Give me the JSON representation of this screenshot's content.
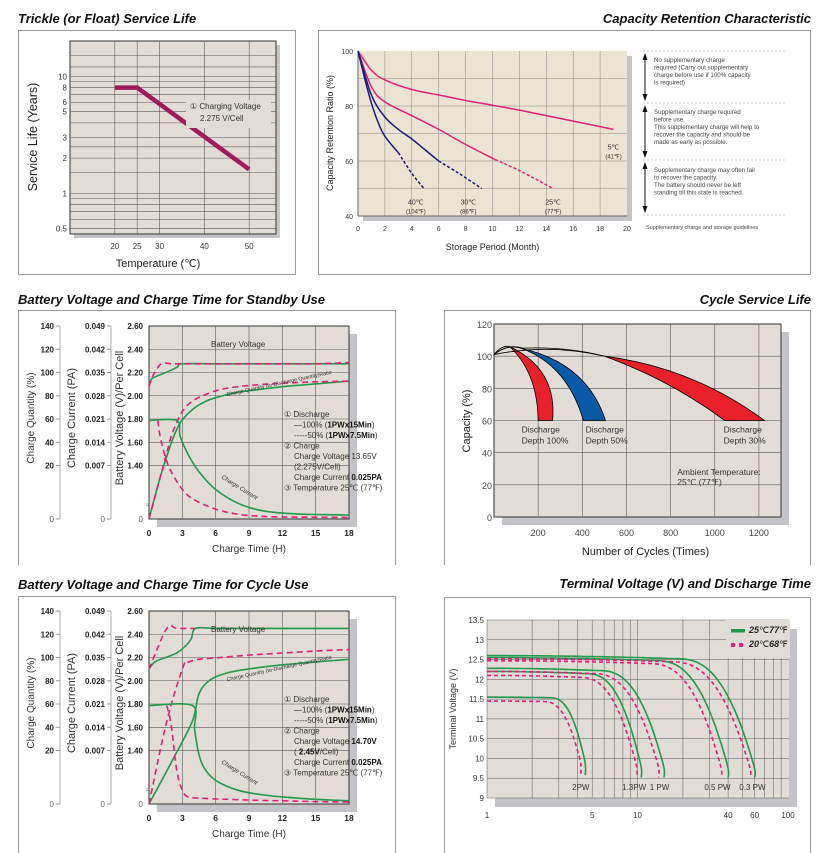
{
  "page": {
    "colors": {
      "plot_bg": "#e1ddd6",
      "plot_bg_warm": "#ece4d2",
      "shadow": "#c4c4c8",
      "grid": "#5a5a5a",
      "magenta": "#a01a5e",
      "pink": "#e0207a",
      "navy": "#1a1a80",
      "green": "#23994a",
      "red": "#e8202a",
      "blue": "#0b5aa8"
    }
  },
  "chart_data": [
    {
      "id": "trickle",
      "type": "line",
      "title": "Trickle (or Float) Service Life",
      "xlabel": "Temperature (℃)",
      "ylabel": "Service Life (Years)",
      "xlim": [
        10,
        60
      ],
      "ylim": [
        0.45,
        20
      ],
      "yscale": "log",
      "xticks": [
        20,
        25,
        30,
        40,
        50
      ],
      "xtick_labels": [
        "20",
        "25",
        "30",
        "40",
        "50"
      ],
      "yticks": [
        0.5,
        1,
        2,
        3,
        5,
        6,
        8,
        10
      ],
      "ytick_labels": [
        "0.5",
        "1",
        "2",
        "3",
        "5",
        "6",
        "8",
        "10"
      ],
      "series": [
        {
          "name": "Charging Voltage 2.275 V/Cell",
          "x": [
            20,
            25,
            50
          ],
          "y": [
            8,
            8,
            1.6
          ]
        }
      ],
      "annotation": [
        "① Charging Voltage",
        "2.275 V/Cell"
      ],
      "grid": true
    },
    {
      "id": "capacity",
      "type": "line",
      "title": "Capacity  Retention  Characteristic",
      "xlabel": "Storage Period (Month)",
      "ylabel": "Capacity Retention Ratio (%)",
      "xlim": [
        0,
        20
      ],
      "ylim": [
        40,
        100
      ],
      "xticks": [
        0,
        2,
        4,
        6,
        8,
        10,
        12,
        14,
        16,
        18,
        20
      ],
      "yticks": [
        40,
        60,
        80,
        100
      ],
      "series": [
        {
          "name": "5℃",
          "sub": "(41℉)",
          "color": "pink",
          "x": [
            0,
            1,
            2,
            4,
            6,
            8,
            10,
            12,
            14,
            16,
            18,
            19
          ],
          "y": [
            100,
            93,
            89.5,
            86,
            84,
            82,
            80.3,
            78.5,
            76.5,
            74.5,
            72.5,
            71.5
          ],
          "dash_from": null,
          "label_at": [
            19,
            65
          ]
        },
        {
          "name": "25℃",
          "sub": "(77℉)",
          "color": "pink",
          "x": [
            0,
            1,
            2,
            4,
            6,
            8,
            10.2,
            12,
            14.5
          ],
          "y": [
            100,
            87,
            81.5,
            76.5,
            71.5,
            66,
            60.5,
            56.5,
            50
          ],
          "dash_from": 10.2,
          "label_at": [
            14.5,
            45
          ]
        },
        {
          "name": "30℃",
          "sub": "(86℉)",
          "color": "navy",
          "x": [
            0,
            1,
            2,
            3,
            4,
            5,
            6,
            7.5,
            9.2
          ],
          "y": [
            100,
            84,
            76,
            71.5,
            68,
            64,
            60,
            55.5,
            50
          ],
          "dash_from": 6,
          "label_at": [
            8.2,
            45
          ]
        },
        {
          "name": "40℃",
          "sub": "(104℉)",
          "color": "navy",
          "x": [
            0,
            0.5,
            1,
            1.5,
            2,
            3,
            4,
            4.9
          ],
          "y": [
            100,
            90,
            81,
            74,
            69,
            63,
            55.5,
            50
          ],
          "dash_from": 3,
          "label_at": [
            4.3,
            45
          ]
        }
      ],
      "guidelines": {
        "caption": "Supplementary charge and storage guidelines",
        "notes": [
          [
            "No supplementary charge",
            "required (Carry out supplementary",
            "charge before use if 100% capacity",
            "is required)"
          ],
          [
            "Supplementary charge required",
            "before use.",
            "This supplementary charge will help to",
            "recover  the capacity and should be",
            "made as early as possible."
          ],
          [
            "Supplementary charge may often fail",
            "to recover the capacity.",
            "The battery should never be left",
            "standing till this state is reached."
          ]
        ]
      },
      "grid": true
    },
    {
      "id": "standby",
      "type": "line",
      "title": "Battery Voltage and Charge Time for Standby Use",
      "xlabel": "Charge Time (H)",
      "xlim": [
        0,
        18
      ],
      "xticks": [
        0,
        3,
        6,
        9,
        12,
        15,
        18
      ],
      "axes": [
        {
          "label": "Charge Quantity (%)",
          "ticks": [
            "140",
            "120",
            "100",
            "80",
            "60",
            "40",
            "20",
            "0"
          ]
        },
        {
          "label": "Charge Current (PA)",
          "ticks": [
            "0.049",
            "0.042",
            "0.035",
            "0.028",
            "0.021",
            "0.014",
            "0.007",
            "0"
          ]
        },
        {
          "label": "Battery Voltage (V)/Per Cell",
          "ticks": [
            "2.60",
            "2.40",
            "2.20",
            "2.00",
            "1.80",
            "1.60",
            "1.40",
            "0"
          ]
        }
      ],
      "series": [
        {
          "name": "Battery Voltage 100%",
          "style": "solid",
          "x": [
            0,
            0.3,
            1,
            2,
            2.6,
            3,
            6,
            9,
            12,
            15,
            18
          ],
          "y": [
            2.1,
            2.15,
            2.18,
            2.22,
            2.25,
            2.275,
            2.275,
            2.275,
            2.275,
            2.275,
            2.275
          ]
        },
        {
          "name": "Battery Voltage 50%",
          "style": "dashed",
          "x": [
            0,
            0.4,
            1.1,
            2,
            3,
            6,
            9,
            12,
            15,
            18
          ],
          "y": [
            2.08,
            2.18,
            2.275,
            2.275,
            2.275,
            2.275,
            2.275,
            2.275,
            2.275,
            2.285
          ]
        },
        {
          "name": "Charge Quantity 100%",
          "style": "solid",
          "unit": "percent",
          "x": [
            0,
            1,
            2,
            2.5,
            3,
            4,
            5,
            6,
            8,
            10,
            12,
            15,
            18
          ],
          "y": [
            0,
            30,
            55,
            65,
            72,
            80,
            85,
            88,
            92,
            94,
            96,
            98,
            100
          ]
        },
        {
          "name": "Charge Quantity 50%",
          "style": "dashed",
          "unit": "percent",
          "x": [
            0,
            1,
            1.6,
            2,
            2.5,
            3,
            4,
            6,
            8,
            10,
            12,
            15,
            18
          ],
          "y": [
            0,
            30,
            48,
            60,
            70,
            78,
            86,
            93,
            96,
            97.5,
            98.5,
            99.5,
            100
          ]
        },
        {
          "name": "Charge Current 100%",
          "style": "solid",
          "unit": "PA",
          "x": [
            0,
            2.5,
            2.8,
            3.5,
            4.5,
            6,
            8,
            10,
            12,
            14,
            18
          ],
          "y": [
            0.025,
            0.025,
            0.021,
            0.0165,
            0.012,
            0.0075,
            0.004,
            0.0022,
            0.0015,
            0.0012,
            0.001
          ]
        },
        {
          "name": "Charge Current 50%",
          "style": "dashed",
          "unit": "PA",
          "x": [
            0.8,
            1,
            1.5,
            2,
            3,
            4,
            6,
            8,
            10,
            12,
            18
          ],
          "y": [
            0.025,
            0.021,
            0.0155,
            0.012,
            0.0075,
            0.005,
            0.0025,
            0.0012,
            0.0007,
            0.0005,
            0.0004
          ]
        }
      ],
      "curve_labels": {
        "voltage": "Battery Voltage",
        "quantity": "Charge Quantity (to-Discharge Quantity)Ratio",
        "current": "Charge Current"
      },
      "notes": [
        {
          "text": "① Discharge"
        },
        {
          "text": "—100% (",
          "bold": "1PWx15Min",
          "tail": ")"
        },
        {
          "text": "-----50% (",
          "bold": "1PWx7.5Min",
          "tail": ")"
        },
        {
          "text": "② Charge"
        },
        {
          "text": "Charge Voltage 13.65V"
        },
        {
          "text": "(2.275V/Cell)"
        },
        {
          "text": "Charge Current ",
          "bold": "0.025PA",
          "tail": ""
        },
        {
          "text": "③ Temperature 25℃ (77℉)"
        }
      ],
      "grid": true
    },
    {
      "id": "cycle",
      "type": "area",
      "title": "Cycle Service Life",
      "xlabel": "Number of Cycles (Times)",
      "ylabel": "Capacity (%)",
      "xlim": [
        0,
        1300
      ],
      "ylim": [
        0,
        120
      ],
      "xticks": [
        200,
        400,
        600,
        800,
        1000,
        1200
      ],
      "yticks": [
        0,
        20,
        40,
        60,
        80,
        100,
        120
      ],
      "series": [
        {
          "name": "Discharge Depth 100%",
          "color": "red",
          "peak": [
            70,
            106
          ],
          "inner_end": [
            200,
            60
          ],
          "outer_end": [
            265,
            60
          ]
        },
        {
          "name": "Discharge Depth 50%",
          "color": "blue",
          "peak": [
            120,
            105
          ],
          "inner_end": [
            405,
            60
          ],
          "outer_end": [
            505,
            60
          ]
        },
        {
          "name": "Discharge Depth 30%",
          "color": "red",
          "peak": [
            150,
            105
          ],
          "inner_end": [
            1045,
            60
          ],
          "outer_end": [
            1225,
            60
          ]
        }
      ],
      "labels": [
        {
          "lines": [
            "Discharge",
            "Depth 100%"
          ],
          "at": [
            125,
            57
          ]
        },
        {
          "lines": [
            "Discharge",
            "Depth 50%"
          ],
          "at": [
            415,
            57
          ]
        },
        {
          "lines": [
            "Discharge",
            "Depth 30%"
          ],
          "at": [
            1040,
            57
          ]
        }
      ],
      "annotation": [
        "Ambient Temperature:",
        "25℃  (77℉)"
      ],
      "grid": true
    },
    {
      "id": "cycleuse",
      "type": "line",
      "title": "Battery Voltage and Charge Time for Cycle Use",
      "xlabel": "Charge Time (H)",
      "xlim": [
        0,
        18
      ],
      "xticks": [
        0,
        3,
        6,
        9,
        12,
        15,
        18
      ],
      "axes": [
        {
          "label": "Charge Quantity (%)",
          "ticks": [
            "140",
            "120",
            "100",
            "80",
            "60",
            "40",
            "20",
            "0"
          ]
        },
        {
          "label": "Charge Current (PA)",
          "ticks": [
            "0.049",
            "0.042",
            "0.035",
            "0.028",
            "0.021",
            "0.014",
            "0.007",
            "0"
          ]
        },
        {
          "label": "Battery Voltage (V)/Per Cell",
          "ticks": [
            "2.60",
            "2.40",
            "2.20",
            "2.00",
            "1.80",
            "1.60",
            "1.40",
            "0"
          ]
        }
      ],
      "series": [
        {
          "name": "Battery Voltage 100%",
          "style": "solid",
          "x": [
            0,
            0.5,
            1.5,
            2.5,
            3.3,
            3.8,
            4.2,
            6,
            9,
            12,
            15,
            18
          ],
          "y": [
            2.1,
            2.16,
            2.2,
            2.24,
            2.3,
            2.36,
            2.45,
            2.45,
            2.45,
            2.45,
            2.45,
            2.45
          ]
        },
        {
          "name": "Battery Voltage 50%",
          "style": "dashed",
          "x": [
            0,
            1.6,
            2.5,
            4.1
          ],
          "y": [
            2.1,
            2.45,
            2.45,
            2.45
          ]
        },
        {
          "name": "Charge Quantity 100%",
          "style": "solid",
          "unit": "percent",
          "x": [
            0,
            2,
            3.9,
            4.5,
            5.5,
            7,
            9,
            12,
            15,
            18
          ],
          "y": [
            0,
            30,
            60,
            80,
            90,
            95,
            98,
            101,
            103,
            105
          ]
        },
        {
          "name": "Charge Quantity 50%",
          "style": "dashed",
          "unit": "percent",
          "x": [
            0,
            1.6,
            3.1,
            3.6,
            4.5,
            6,
            9,
            12,
            15,
            18
          ],
          "y": [
            0,
            60,
            100,
            103,
            105,
            106,
            108,
            109.5,
            111,
            112
          ]
        },
        {
          "name": "Charge Current 100%",
          "style": "solid",
          "unit": "PA",
          "x": [
            0,
            3.9,
            4.1,
            4.5,
            5,
            6,
            8,
            10,
            12,
            15,
            18
          ],
          "y": [
            0.025,
            0.025,
            0.019,
            0.0125,
            0.009,
            0.006,
            0.0035,
            0.0024,
            0.0018,
            0.0012,
            0.0008
          ]
        },
        {
          "name": "Charge Current 50%",
          "style": "dashed",
          "unit": "PA",
          "x": [
            1.6,
            2,
            2.5,
            3,
            3.5,
            4.5,
            6,
            9,
            12,
            15,
            18
          ],
          "y": [
            0.025,
            0.02,
            0.0085,
            0.0035,
            0.0018,
            0.0015,
            0.0013,
            0.001,
            0.0008,
            0.0006,
            0.0005
          ]
        }
      ],
      "curve_labels": {
        "voltage": "Battery Voltage",
        "quantity": "Charge Quantity (to-Discharge Quantity)Ratio",
        "current": "Charge Current"
      },
      "notes": [
        {
          "text": "① Discharge"
        },
        {
          "text": "—100% (",
          "bold": "1PWx15Min",
          "tail": ")"
        },
        {
          "text": "-----50% (",
          "bold": "1PWx7.5Min",
          "tail": ")"
        },
        {
          "text": "② Charge"
        },
        {
          "text": "Charge Voltage ",
          "bold": "14.70V",
          "tail": ""
        },
        {
          "text": "( ",
          "bold": "2.45V",
          "tail": "/Cell)"
        },
        {
          "text": "Charge Current ",
          "bold": "0.025PA",
          "tail": ""
        },
        {
          "text": "③ Temperature 25℃ (77℉)"
        }
      ],
      "grid": true
    },
    {
      "id": "terminal",
      "type": "line",
      "title": "Terminal Voltage (V) and Discharge Time",
      "ylabel": "Terminal Voltage (V)",
      "xscale": "log",
      "xlim": [
        1,
        100
      ],
      "ylim": [
        9,
        13.5
      ],
      "xticks": [
        1,
        5,
        10,
        40,
        60,
        100
      ],
      "yticks": [
        9,
        9.5,
        10,
        10.5,
        11,
        11.5,
        12,
        12.5,
        13,
        13.5
      ],
      "ytick_labels": [
        "9",
        "9.5",
        "10",
        "10.5",
        "11",
        "11.5",
        "12",
        "12.5",
        "13",
        "13.5"
      ],
      "legend": [
        {
          "label_a": "25",
          "label_b": "℃",
          "label_c": "77",
          "label_d": "℉",
          "style": "solid",
          "color": "green"
        },
        {
          "label_a": "20",
          "label_b": "℃",
          "label_c": "68",
          "label_d": "℉",
          "style": "dashed",
          "color": "pink"
        }
      ],
      "legend_position": "top-right",
      "series": [
        {
          "name": "2PW",
          "start": 11.55,
          "knee": 2.6,
          "end_x": 4.5,
          "end_y": 9.58,
          "dstart": 11.45,
          "dend_x": 4.2
        },
        {
          "name": "1.3PW",
          "start": 12.2,
          "knee": 4.5,
          "end_x": 10.6,
          "end_y": 9.52,
          "dstart": 12.1,
          "dend_x": 9.9
        },
        {
          "name": "1 PW",
          "start": 12.28,
          "knee": 5.5,
          "end_x": 15,
          "end_y": 9.52,
          "dstart": 12.2,
          "dend_x": 13.8
        },
        {
          "name": "0.5 PW",
          "start": 12.55,
          "knee": 13,
          "end_x": 40,
          "end_y": 9.52,
          "dstart": 12.47,
          "dend_x": 36
        },
        {
          "name": "0.3 PW",
          "start": 12.6,
          "knee": 18,
          "end_x": 60,
          "end_y": 9.52,
          "dstart": 12.52,
          "dend_x": 56
        }
      ],
      "curve_labels": [
        "2PW",
        "1.3PW",
        "1 PW",
        "0.5 PW",
        "0.3 PW"
      ],
      "grid": true
    }
  ]
}
